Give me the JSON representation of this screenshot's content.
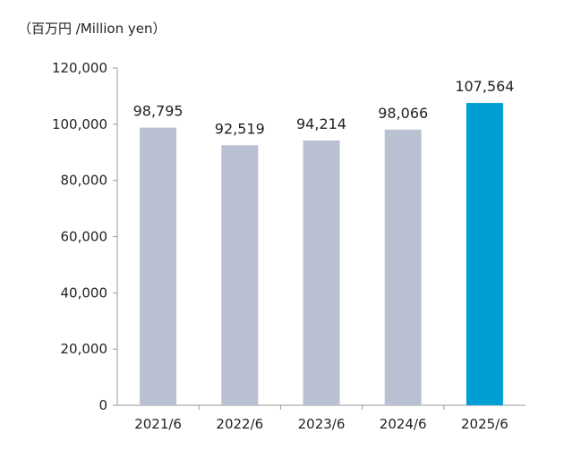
{
  "chart_data": {
    "type": "bar",
    "unit_label": "（百万円 /Million yen）",
    "categories": [
      "2021/6",
      "2022/6",
      "2023/6",
      "2024/6",
      "2025/6"
    ],
    "values": [
      98795,
      92519,
      94214,
      98066,
      107564
    ],
    "value_labels": [
      "98,795",
      "92,519",
      "94,214",
      "98,066",
      "107,564"
    ],
    "y_ticks": [
      0,
      20000,
      40000,
      60000,
      80000,
      100000,
      120000
    ],
    "y_tick_labels": [
      "0",
      "20,000",
      "40,000",
      "60,000",
      "80,000",
      "100,000",
      "120,000"
    ],
    "ylim": [
      0,
      120000
    ],
    "grid": false,
    "legend": "none",
    "colors": {
      "default_bar": "#b8c0d1",
      "highlight_bar": "#009fd3",
      "axis": "#999999",
      "text": "#222222"
    },
    "highlight_index": 4
  }
}
